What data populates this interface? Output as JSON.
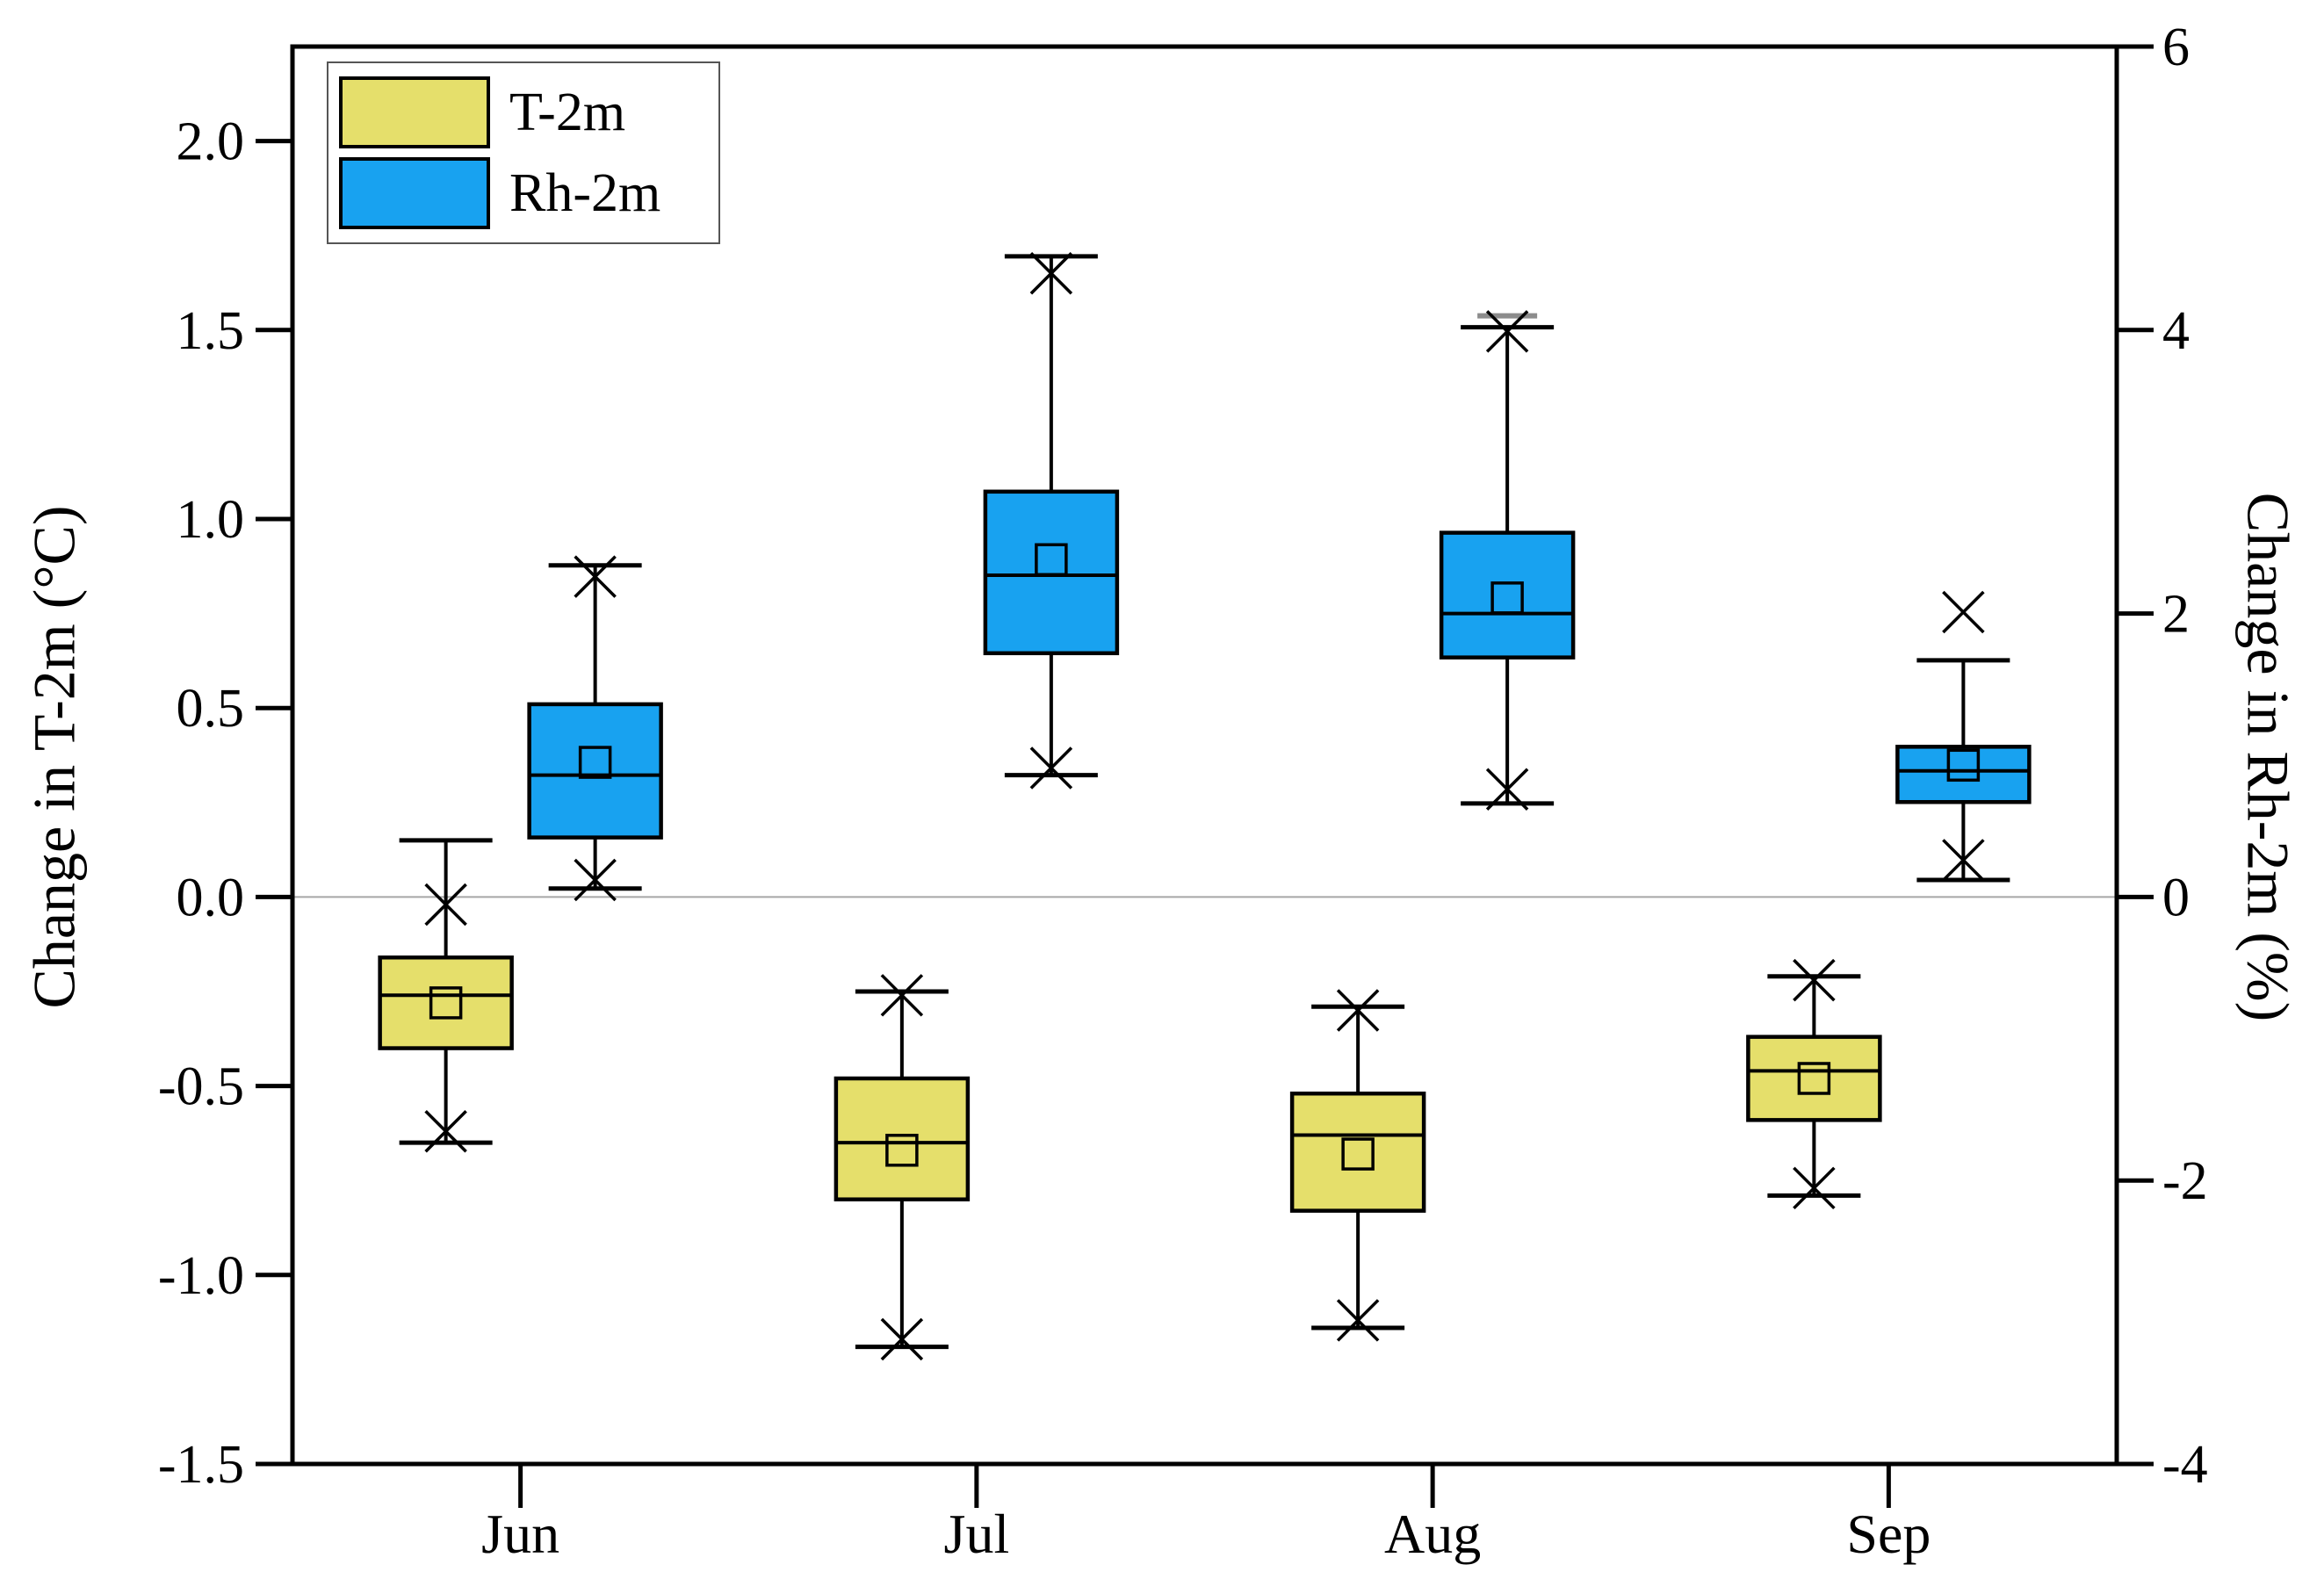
{
  "figure": {
    "background": "#ffffff",
    "frame_color": "#000000",
    "gridline_color": "#a6a6a6",
    "marker_color": "#000000",
    "gray_dash_color": "#8c8c8c"
  },
  "chart_data": {
    "type": "boxplot",
    "title": "",
    "categories": [
      "Jun",
      "Jul",
      "Aug",
      "Sep"
    ],
    "grid": "zero-line-only",
    "legend": {
      "position": "top-left",
      "items": [
        {
          "label": "T-2m",
          "color": "#E5DF6B"
        },
        {
          "label": "Rh-2m",
          "color": "#18A2F0"
        }
      ]
    },
    "axes": {
      "left": {
        "label": "Change in T-2m (°C)",
        "tick_labels": [
          "2.0",
          "1.5",
          "1.0",
          "0.5",
          "0.0",
          "-0.5",
          "-1.0",
          "-1.5"
        ],
        "tick_values": [
          2.0,
          1.5,
          1.0,
          0.5,
          0.0,
          -0.5,
          -1.0,
          -1.5
        ],
        "range": [
          -1.5,
          2.25
        ]
      },
      "right": {
        "label": "Change in Rh-2m (%)",
        "tick_labels": [
          "6",
          "4",
          "2",
          "0",
          "-2",
          "-4"
        ],
        "tick_values": [
          6,
          4,
          2,
          0,
          -2,
          -4
        ],
        "range": [
          -4,
          6
        ]
      },
      "bottom": {
        "tick_labels": [
          "Jun",
          "Jul",
          "Aug",
          "Sep"
        ]
      }
    },
    "series": [
      {
        "name": "T-2m",
        "axis": "left",
        "unit": "°C",
        "color": "#E5DF6B",
        "boxes": [
          {
            "category": "Jun",
            "whisker_low": -0.65,
            "x_low": -0.62,
            "q1": -0.4,
            "median": -0.26,
            "mean": -0.28,
            "q3": -0.16,
            "x_high": -0.02,
            "whisker_high": 0.15
          },
          {
            "category": "Jul",
            "whisker_low": -1.19,
            "x_low": -1.17,
            "q1": -0.8,
            "median": -0.65,
            "mean": -0.67,
            "q3": -0.48,
            "x_high": -0.26,
            "whisker_high": -0.25
          },
          {
            "category": "Aug",
            "whisker_low": -1.14,
            "x_low": -1.12,
            "q1": -0.83,
            "median": -0.63,
            "mean": -0.68,
            "q3": -0.52,
            "x_high": -0.3,
            "whisker_high": -0.29
          },
          {
            "category": "Sep",
            "whisker_low": -0.79,
            "x_low": -0.77,
            "q1": -0.59,
            "median": -0.46,
            "mean": -0.48,
            "q3": -0.37,
            "x_high": -0.22,
            "whisker_high": -0.21
          }
        ]
      },
      {
        "name": "Rh-2m",
        "axis": "right",
        "unit": "%",
        "color": "#18A2F0",
        "boxes": [
          {
            "category": "Jun",
            "whisker_low": 0.06,
            "x_low": 0.12,
            "q1": 0.42,
            "median": 0.86,
            "mean": 0.95,
            "q3": 1.36,
            "x_high": 2.26,
            "whisker_high": 2.34
          },
          {
            "category": "Jul",
            "whisker_low": 0.86,
            "x_low": 0.91,
            "q1": 1.72,
            "median": 2.27,
            "mean": 2.38,
            "q3": 2.86,
            "x_high": 4.4,
            "whisker_high": 4.52
          },
          {
            "category": "Aug",
            "whisker_low": 0.66,
            "x_low": 0.76,
            "q1": 1.69,
            "median": 2.0,
            "mean": 2.11,
            "q3": 2.57,
            "x_high": 3.99,
            "whisker_high": 4.02,
            "max_dash": 4.1
          },
          {
            "category": "Sep",
            "whisker_low": 0.12,
            "x_low": 0.26,
            "q1": 0.67,
            "median": 0.89,
            "mean": 0.93,
            "q3": 1.06,
            "x_high": 2.01,
            "whisker_high": 1.67
          }
        ]
      }
    ]
  }
}
